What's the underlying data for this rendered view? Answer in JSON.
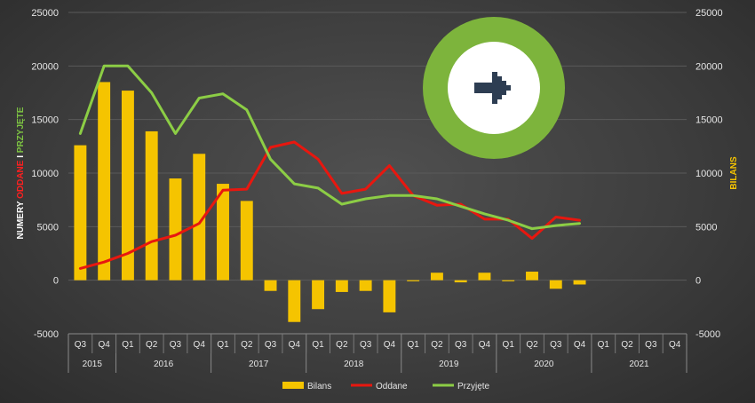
{
  "chart_data": {
    "type": "bar",
    "left_axis": {
      "label_parts": [
        {
          "text": "NUMERY ",
          "color": "#ffffff"
        },
        {
          "text": "ODDANE",
          "color": "#ff2020"
        },
        {
          "text": " I ",
          "color": "#ffffff"
        },
        {
          "text": "PRZYJĘTE",
          "color": "#7cc242"
        }
      ],
      "ylim": [
        -5000,
        25000
      ],
      "ticks": [
        "-5000",
        "0",
        "5000",
        "10000",
        "15000",
        "20000",
        "25000"
      ]
    },
    "right_axis": {
      "label": "BILANS",
      "color": "#f5c400",
      "ylim": [
        -5000,
        25000
      ],
      "ticks": [
        "-5000",
        "0",
        "5000",
        "10000",
        "15000",
        "20000",
        "25000"
      ]
    },
    "categories": [
      "Q3",
      "Q4",
      "Q1",
      "Q2",
      "Q3",
      "Q4",
      "Q1",
      "Q2",
      "Q3",
      "Q4",
      "Q1",
      "Q2",
      "Q3",
      "Q4",
      "Q1",
      "Q2",
      "Q3",
      "Q4",
      "Q1",
      "Q2",
      "Q3",
      "Q4",
      "Q1",
      "Q2",
      "Q3",
      "Q4"
    ],
    "years": [
      {
        "label": "2015",
        "count": 2
      },
      {
        "label": "2016",
        "count": 4
      },
      {
        "label": "2017",
        "count": 4
      },
      {
        "label": "2018",
        "count": 4
      },
      {
        "label": "2019",
        "count": 4
      },
      {
        "label": "2020",
        "count": 4
      },
      {
        "label": "2021",
        "count": 4
      }
    ],
    "series": [
      {
        "name": "Bilans",
        "type": "bar",
        "axis": "right",
        "color": "#f5c400",
        "values": [
          12600,
          18500,
          17700,
          13900,
          9500,
          11800,
          9000,
          7400,
          -1000,
          -3900,
          -2700,
          -1100,
          -1000,
          -3000,
          -100,
          700,
          -200,
          700,
          -100,
          800,
          -800,
          -400,
          null,
          null,
          null,
          null
        ]
      },
      {
        "name": "Oddane",
        "type": "line",
        "axis": "left",
        "color": "#e8170f",
        "values": [
          1100,
          1700,
          2500,
          3600,
          4200,
          5300,
          8400,
          8500,
          12400,
          12900,
          11300,
          8100,
          8500,
          10700,
          7900,
          7000,
          7100,
          5700,
          5700,
          3900,
          5900,
          5600,
          null,
          null,
          null,
          null
        ]
      },
      {
        "name": "Przyjęte",
        "type": "line",
        "axis": "left",
        "color": "#8ccd45",
        "values": [
          13700,
          20000,
          20000,
          17500,
          13700,
          17000,
          17400,
          15900,
          11300,
          9000,
          8600,
          7100,
          7600,
          7900,
          7900,
          7600,
          6900,
          6200,
          5600,
          4800,
          5100,
          5300,
          null,
          null,
          null,
          null
        ]
      }
    ],
    "legend": {
      "position": "bottom",
      "items": [
        "Bilans",
        "Oddane",
        "Przyjęte"
      ]
    },
    "grid": true,
    "logo": {
      "ring_color": "#7db43c",
      "inner_color": "#ffffff",
      "arrow_color": "#2d3d52",
      "icon": "arrow-right-icon"
    }
  }
}
